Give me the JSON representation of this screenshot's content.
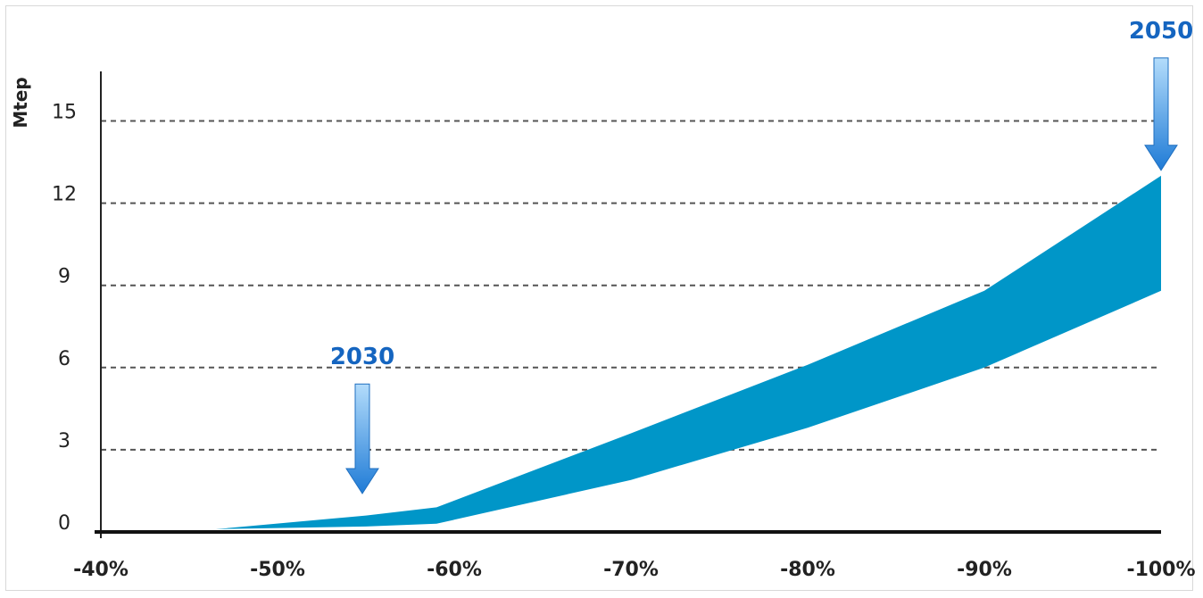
{
  "chart_data": {
    "type": "area",
    "title": "",
    "xlabel": "",
    "ylabel": "Mtep",
    "x_categories": [
      "-40%",
      "-50%",
      "-60%",
      "-70%",
      "-80%",
      "-90%",
      "-100%"
    ],
    "y_ticks": [
      0,
      3,
      6,
      9,
      12,
      15
    ],
    "ylim": [
      0,
      16.8
    ],
    "grid": "horizontal dashed",
    "band": {
      "x": [
        -46.5,
        -55,
        -59,
        -70,
        -80,
        -90,
        -100
      ],
      "lower": [
        0.1,
        0.2,
        0.3,
        1.9,
        3.8,
        6.0,
        8.8
      ],
      "upper": [
        0.1,
        0.6,
        0.9,
        3.6,
        6.1,
        8.8,
        13.0
      ],
      "color": "#0096c8"
    },
    "annotations": [
      {
        "label": "2030",
        "x": -54.8,
        "arrow_from": 5.4,
        "arrow_to": 1.4
      },
      {
        "label": "2050",
        "x": -100,
        "arrow_from": 17.3,
        "arrow_to": 13.2
      }
    ]
  }
}
